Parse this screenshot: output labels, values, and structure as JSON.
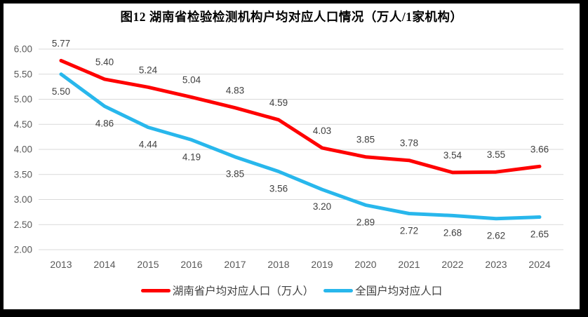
{
  "chart_data": {
    "type": "line",
    "title": "图12 湖南省检验检测机构户均对应人口情况（万人/1家机构）",
    "categories": [
      "2013",
      "2014",
      "2015",
      "2016",
      "2017",
      "2018",
      "2019",
      "2020",
      "2021",
      "2022",
      "2023",
      "2024"
    ],
    "series": [
      {
        "name": "湖南省户均对应人口（万人）",
        "color": "#FF0000",
        "values": [
          5.77,
          5.4,
          5.24,
          5.04,
          4.83,
          4.59,
          4.03,
          3.85,
          3.78,
          3.54,
          3.55,
          3.66
        ],
        "data_label_position": "above"
      },
      {
        "name": "全国户均对应人口",
        "color": "#28B7EC",
        "values": [
          5.5,
          4.86,
          4.44,
          4.19,
          3.85,
          3.56,
          3.2,
          2.89,
          2.72,
          2.68,
          2.62,
          2.65
        ],
        "data_label_position": "below"
      }
    ],
    "xlabel": "",
    "ylabel": "",
    "ylim": [
      2.0,
      6.0
    ],
    "ytick_step": 0.5,
    "ytick_labels": [
      "6.00",
      "5.50",
      "5.00",
      "4.50",
      "4.00",
      "3.50",
      "3.00",
      "2.50",
      "2.00"
    ],
    "grid": true,
    "legend_position": "bottom",
    "colors": {
      "gridline": "#D9D9D9",
      "tick_label": "#595959",
      "data_label": "#404040",
      "title": "#000000",
      "background": "#FFFFFF",
      "frame_border": "#000000"
    }
  }
}
